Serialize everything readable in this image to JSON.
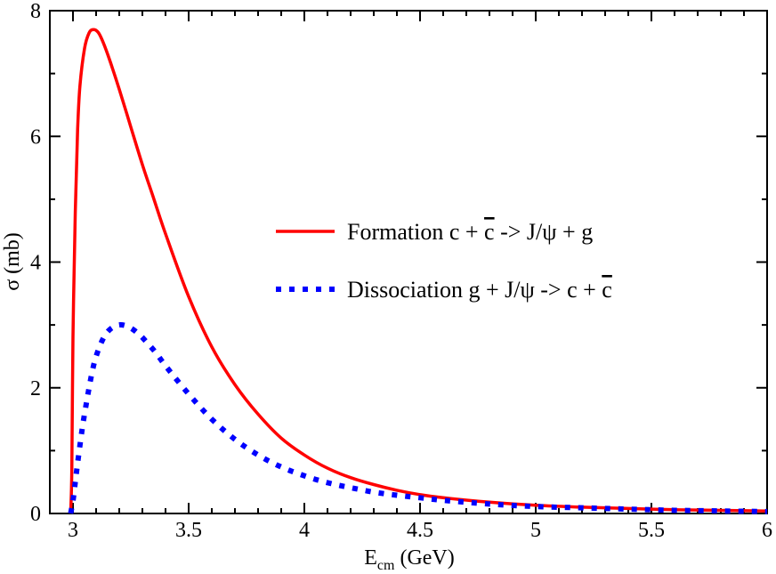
{
  "chart_data": {
    "type": "line",
    "title": "",
    "xlabel": {
      "main": "E",
      "sub": "cm",
      "unit": " (GeV)"
    },
    "ylabel": "σ (mb)",
    "xlim": [
      2.9,
      6
    ],
    "ylim": [
      0,
      8
    ],
    "x_ticks": [
      {
        "value": 3,
        "label": "3"
      },
      {
        "value": 3.5,
        "label": "3.5"
      },
      {
        "value": 4,
        "label": "4"
      },
      {
        "value": 4.5,
        "label": "4.5"
      },
      {
        "value": 5,
        "label": "5"
      },
      {
        "value": 5.5,
        "label": "5.5"
      },
      {
        "value": 6,
        "label": "6"
      }
    ],
    "y_ticks": [
      {
        "value": 0,
        "label": "0"
      },
      {
        "value": 2,
        "label": "2"
      },
      {
        "value": 4,
        "label": "4"
      },
      {
        "value": 6,
        "label": "6"
      },
      {
        "value": 8,
        "label": "8"
      }
    ],
    "grid": false,
    "legend_position": "center-right",
    "series": [
      {
        "name": "Formation",
        "legend": {
          "lead": "Formation c + ",
          "bar_char": "c",
          "tail": " -> J/ψ + g"
        },
        "color": "#ff0000",
        "style": "solid",
        "x": [
          2.99,
          2.995,
          3.0,
          3.01,
          3.02,
          3.03,
          3.05,
          3.07,
          3.09,
          3.11,
          3.13,
          3.16,
          3.2,
          3.25,
          3.3,
          3.35,
          3.4,
          3.5,
          3.6,
          3.7,
          3.8,
          3.9,
          4.0,
          4.1,
          4.2,
          4.3,
          4.4,
          4.5,
          4.6,
          4.8,
          5.0,
          5.2,
          5.4,
          5.6,
          5.8,
          6.0
        ],
        "y": [
          0.0,
          0.7,
          2.8,
          4.8,
          6.1,
          6.8,
          7.4,
          7.65,
          7.7,
          7.65,
          7.5,
          7.2,
          6.75,
          6.15,
          5.55,
          5.0,
          4.45,
          3.45,
          2.65,
          2.05,
          1.58,
          1.2,
          0.93,
          0.72,
          0.57,
          0.46,
          0.37,
          0.3,
          0.25,
          0.18,
          0.13,
          0.1,
          0.08,
          0.06,
          0.05,
          0.04
        ]
      },
      {
        "name": "Dissociation",
        "legend": {
          "lead": "Dissociation  g + J/ψ -> c + ",
          "bar_char": "c",
          "tail": ""
        },
        "color": "#0000ff",
        "style": "dotted",
        "x": [
          2.99,
          3.0,
          3.01,
          3.02,
          3.04,
          3.06,
          3.08,
          3.1,
          3.13,
          3.16,
          3.2,
          3.24,
          3.28,
          3.32,
          3.36,
          3.4,
          3.5,
          3.6,
          3.7,
          3.8,
          3.9,
          4.0,
          4.1,
          4.2,
          4.3,
          4.4,
          4.5,
          4.6,
          4.8,
          5.0,
          5.2,
          5.4,
          5.6,
          5.8,
          6.0
        ],
        "y": [
          0.0,
          0.2,
          0.5,
          0.8,
          1.35,
          1.8,
          2.2,
          2.5,
          2.78,
          2.93,
          3.0,
          2.97,
          2.87,
          2.72,
          2.55,
          2.35,
          1.9,
          1.5,
          1.18,
          0.93,
          0.74,
          0.6,
          0.49,
          0.41,
          0.34,
          0.29,
          0.25,
          0.21,
          0.15,
          0.11,
          0.09,
          0.07,
          0.05,
          0.04,
          0.03
        ]
      }
    ]
  }
}
